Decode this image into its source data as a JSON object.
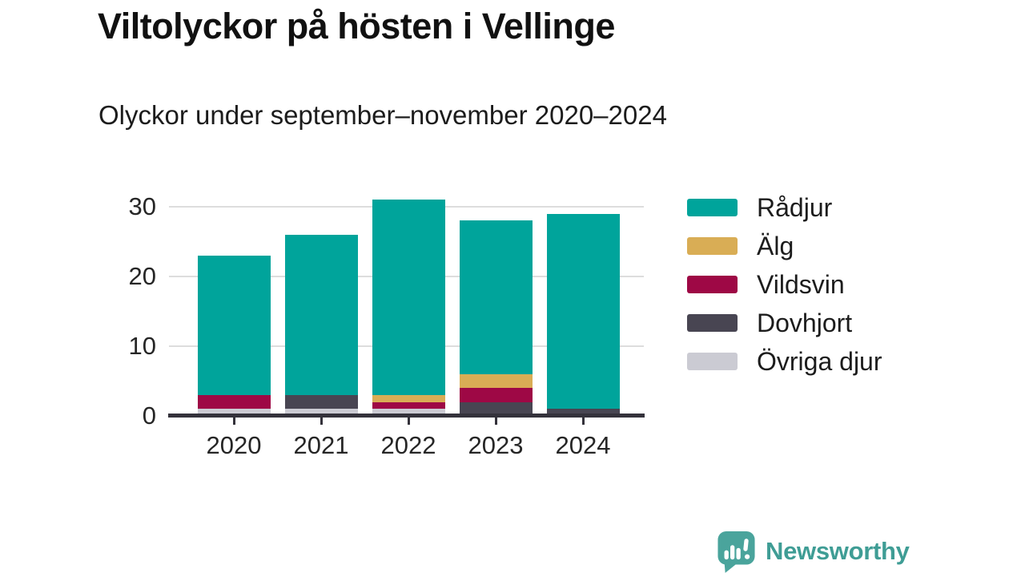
{
  "header": {
    "title": "Viltolyckor på hösten i Vellinge",
    "subtitle": "Olyckor under september–november 2020–2024"
  },
  "chart_data": {
    "type": "bar",
    "stacked": true,
    "title": "Viltolyckor på hösten i Vellinge",
    "subtitle": "Olyckor under september–november 2020–2024",
    "categories": [
      "2020",
      "2021",
      "2022",
      "2023",
      "2024"
    ],
    "series": [
      {
        "name": "Rådjur",
        "color": "#00a49b",
        "values": [
          20,
          23,
          28,
          22,
          28
        ]
      },
      {
        "name": "Älg",
        "color": "#d9ad55",
        "values": [
          0,
          0,
          1,
          2,
          0
        ]
      },
      {
        "name": "Vildsvin",
        "color": "#9e0845",
        "values": [
          2,
          0,
          1,
          2,
          0
        ]
      },
      {
        "name": "Dovhjort",
        "color": "#484552",
        "values": [
          0,
          2,
          0,
          2,
          1
        ]
      },
      {
        "name": "Övriga djur",
        "color": "#cbcbd3",
        "values": [
          1,
          1,
          1,
          0,
          0
        ]
      }
    ],
    "stack_order_bottom_to_top": [
      "Övriga djur",
      "Dovhjort",
      "Vildsvin",
      "Älg",
      "Rådjur"
    ],
    "totals": [
      23,
      26,
      31,
      28,
      29
    ],
    "y_ticks": [
      0,
      10,
      20,
      30
    ],
    "ylim": [
      0,
      31
    ],
    "xlabel": "",
    "ylabel": "",
    "grid": "horizontal",
    "legend_position": "right"
  },
  "footer": {
    "brand": "Newsworthy"
  },
  "colors": {
    "background": "#ffffff",
    "axis": "#34323b",
    "grid": "#dddddd",
    "brand_teal": "#3f9d95",
    "logo_teal": "#4aa49c"
  }
}
